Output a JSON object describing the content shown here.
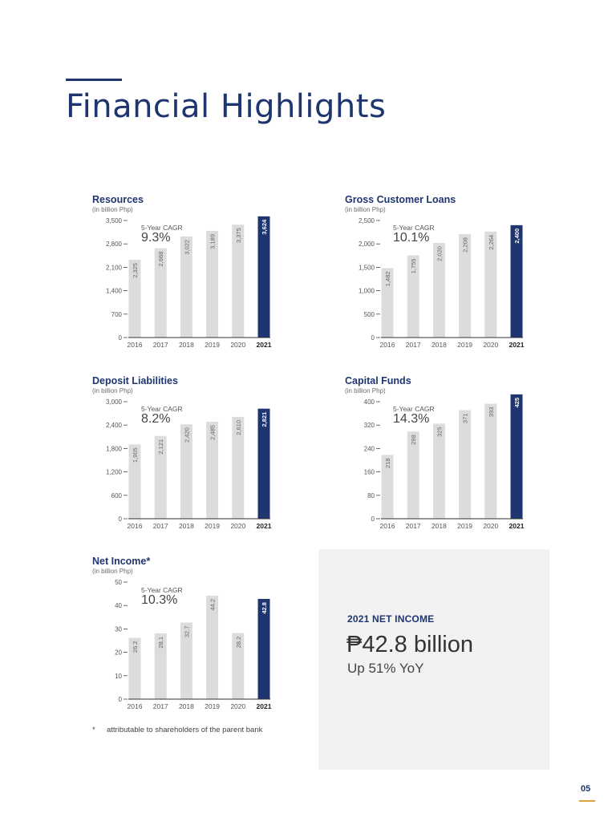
{
  "page": {
    "title": "Financial Highlights",
    "number": "05",
    "footnote_mark": "*",
    "footnote_text": "attributable to shareholders of the parent bank",
    "colors": {
      "accent": "#1e3570",
      "bar": "#dcdcdc",
      "gold": "#d9a43a"
    }
  },
  "highlight": {
    "heading": "2021 NET INCOME",
    "amount": "₱42.8 billion",
    "change": "Up 51% YoY"
  },
  "chart_data": [
    {
      "type": "bar",
      "title": "Resources",
      "subtitle": "(in billion Php)",
      "cagr_label": "5-Year CAGR",
      "cagr_value": "9.3%",
      "categories": [
        "2016",
        "2017",
        "2018",
        "2019",
        "2020",
        "2021"
      ],
      "values": [
        2325,
        2668,
        3022,
        3189,
        3375,
        3624
      ],
      "value_labels": [
        "2,325",
        "2,668",
        "3,022",
        "3,189",
        "3,375",
        "3,624"
      ],
      "yticks": [
        0,
        700,
        1400,
        2100,
        2800,
        3500
      ],
      "ytick_labels": [
        "0",
        "700",
        "1,400",
        "2,100",
        "2,800",
        "3,500"
      ],
      "ylim": [
        0,
        3500
      ],
      "highlight_index": 5
    },
    {
      "type": "bar",
      "title": "Gross Customer Loans",
      "subtitle": "(in billion Php)",
      "cagr_label": "5-Year CAGR",
      "cagr_value": "10.1%",
      "categories": [
        "2016",
        "2017",
        "2018",
        "2019",
        "2020",
        "2021"
      ],
      "values": [
        1482,
        1755,
        2020,
        2208,
        2264,
        2400
      ],
      "value_labels": [
        "1,482",
        "1,755",
        "2,020",
        "2,208",
        "2,264",
        "2,400"
      ],
      "yticks": [
        0,
        500,
        1000,
        1500,
        2000,
        2500
      ],
      "ytick_labels": [
        "0",
        "500",
        "1,000",
        "1,500",
        "2,000",
        "2,500"
      ],
      "ylim": [
        0,
        2500
      ],
      "highlight_index": 5
    },
    {
      "type": "bar",
      "title": "Deposit Liabilities",
      "subtitle": "(in billion Php)",
      "cagr_label": "5-Year CAGR",
      "cagr_value": "8.2%",
      "categories": [
        "2016",
        "2017",
        "2018",
        "2019",
        "2020",
        "2021"
      ],
      "values": [
        1905,
        2121,
        2420,
        2485,
        2610,
        2821
      ],
      "value_labels": [
        "1,905",
        "2,121",
        "2,420",
        "2,485",
        "2,610",
        "2,821"
      ],
      "yticks": [
        0,
        600,
        1200,
        1800,
        2400,
        3000
      ],
      "ytick_labels": [
        "0",
        "600",
        "1,200",
        "1,800",
        "2,400",
        "3,000"
      ],
      "ylim": [
        0,
        3000
      ],
      "highlight_index": 5
    },
    {
      "type": "bar",
      "title": "Capital Funds",
      "subtitle": "(in billion Php)",
      "cagr_label": "5-Year CAGR",
      "cagr_value": "14.3%",
      "categories": [
        "2016",
        "2017",
        "2018",
        "2019",
        "2020",
        "2021"
      ],
      "values": [
        218,
        298,
        325,
        371,
        393,
        425
      ],
      "value_labels": [
        "218",
        "298",
        "325",
        "371",
        "393",
        "425"
      ],
      "yticks": [
        0,
        80,
        160,
        240,
        320,
        400
      ],
      "ytick_labels": [
        "0",
        "80",
        "160",
        "240",
        "320",
        "400"
      ],
      "ylim": [
        0,
        400
      ],
      "highlight_index": 5
    },
    {
      "type": "bar",
      "title": "Net Income*",
      "subtitle": "(in billion Php)",
      "cagr_label": "5-Year CAGR",
      "cagr_value": "10.3%",
      "categories": [
        "2016",
        "2017",
        "2018",
        "2019",
        "2020",
        "2021"
      ],
      "values": [
        26.2,
        28.1,
        32.7,
        44.2,
        28.2,
        42.8
      ],
      "value_labels": [
        "26.2",
        "28.1",
        "32.7",
        "44.2",
        "28.2",
        "42.8"
      ],
      "yticks": [
        0,
        10,
        20,
        30,
        40,
        50
      ],
      "ytick_labels": [
        "0",
        "10",
        "20",
        "30",
        "40",
        "50"
      ],
      "ylim": [
        0,
        50
      ],
      "highlight_index": 5
    }
  ]
}
